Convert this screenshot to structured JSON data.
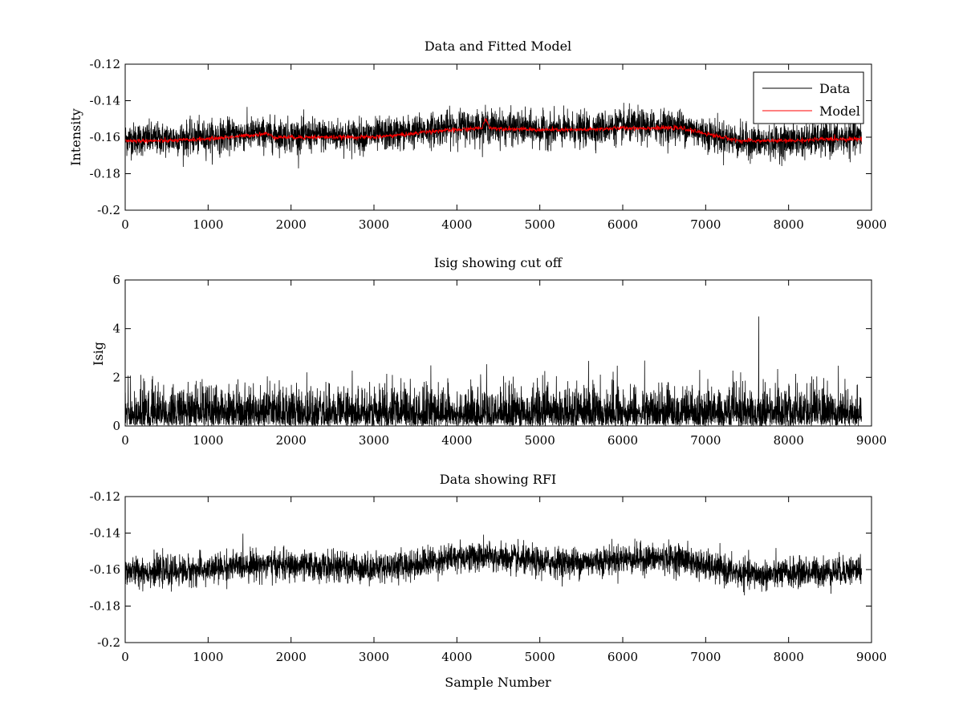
{
  "figure": {
    "colors": {
      "data": "#000000",
      "model": "#ff0000",
      "axes": "#000000",
      "background": "#ffffff"
    }
  },
  "chart_data": [
    {
      "type": "line",
      "title": "Data and Fitted Model",
      "xlabel": "",
      "ylabel": "Intensity",
      "xlim": [
        0,
        9000
      ],
      "ylim": [
        -0.2,
        -0.12
      ],
      "xticks": [
        0,
        1000,
        2000,
        3000,
        4000,
        5000,
        6000,
        7000,
        8000,
        9000
      ],
      "yticks": [
        -0.2,
        -0.18,
        -0.16,
        -0.14,
        -0.12
      ],
      "grid": false,
      "legend": {
        "position": "top-right",
        "entries": [
          "Data",
          "Model"
        ]
      },
      "series": [
        {
          "name": "Data",
          "color": "#000000",
          "noise_std": 0.0045,
          "x_range": [
            0,
            8880
          ],
          "trend": [
            [
              0,
              -0.161
            ],
            [
              500,
              -0.161
            ],
            [
              1000,
              -0.16
            ],
            [
              1500,
              -0.158
            ],
            [
              2000,
              -0.159
            ],
            [
              3000,
              -0.159
            ],
            [
              3500,
              -0.157
            ],
            [
              4000,
              -0.154
            ],
            [
              4400,
              -0.154
            ],
            [
              5000,
              -0.156
            ],
            [
              5500,
              -0.156
            ],
            [
              6000,
              -0.154
            ],
            [
              6700,
              -0.154
            ],
            [
              7000,
              -0.158
            ],
            [
              7400,
              -0.162
            ],
            [
              7700,
              -0.163
            ],
            [
              8000,
              -0.162
            ],
            [
              8500,
              -0.161
            ],
            [
              8880,
              -0.16
            ]
          ]
        },
        {
          "name": "Model",
          "color": "#ff0000",
          "x_range": [
            0,
            8880
          ],
          "values": [
            [
              0,
              -0.162
            ],
            [
              500,
              -0.162
            ],
            [
              1000,
              -0.161
            ],
            [
              1500,
              -0.159
            ],
            [
              1700,
              -0.158
            ],
            [
              1800,
              -0.16
            ],
            [
              2000,
              -0.16
            ],
            [
              3000,
              -0.16
            ],
            [
              3500,
              -0.158
            ],
            [
              3600,
              -0.157
            ],
            [
              4000,
              -0.156
            ],
            [
              4300,
              -0.155
            ],
            [
              4350,
              -0.15
            ],
            [
              4400,
              -0.155
            ],
            [
              5000,
              -0.156
            ],
            [
              5500,
              -0.156
            ],
            [
              6000,
              -0.155
            ],
            [
              6700,
              -0.155
            ],
            [
              7000,
              -0.158
            ],
            [
              7400,
              -0.162
            ],
            [
              7700,
              -0.162
            ],
            [
              8000,
              -0.162
            ],
            [
              8500,
              -0.161
            ],
            [
              8880,
              -0.161
            ]
          ]
        }
      ]
    },
    {
      "type": "line",
      "title": "Isig showing cut off",
      "xlabel": "",
      "ylabel": "Isig",
      "xlim": [
        0,
        9000
      ],
      "ylim": [
        0,
        6
      ],
      "xticks": [
        0,
        1000,
        2000,
        3000,
        4000,
        5000,
        6000,
        7000,
        8000,
        9000
      ],
      "yticks": [
        0,
        2,
        4,
        6
      ],
      "grid": false,
      "series": [
        {
          "color": "#000000",
          "distribution": "absolute-gaussian",
          "scale": 0.75,
          "x_range": [
            0,
            8880
          ],
          "peak": {
            "x": 7640,
            "y": 4.5
          }
        }
      ]
    },
    {
      "type": "line",
      "title": "Data showing RFI",
      "xlabel": "Sample Number",
      "ylabel": "",
      "xlim": [
        0,
        9000
      ],
      "ylim": [
        -0.2,
        -0.12
      ],
      "xticks": [
        0,
        1000,
        2000,
        3000,
        4000,
        5000,
        6000,
        7000,
        8000,
        9000
      ],
      "yticks": [
        -0.2,
        -0.18,
        -0.16,
        -0.14,
        -0.12
      ],
      "grid": false,
      "series": [
        {
          "color": "#000000",
          "noise_std": 0.004,
          "x_range": [
            0,
            8880
          ],
          "trend": [
            [
              0,
              -0.161
            ],
            [
              500,
              -0.161
            ],
            [
              1000,
              -0.16
            ],
            [
              1500,
              -0.157
            ],
            [
              2000,
              -0.158
            ],
            [
              3000,
              -0.159
            ],
            [
              3500,
              -0.157
            ],
            [
              4000,
              -0.153
            ],
            [
              4400,
              -0.153
            ],
            [
              5000,
              -0.156
            ],
            [
              5500,
              -0.156
            ],
            [
              6000,
              -0.154
            ],
            [
              6700,
              -0.154
            ],
            [
              7000,
              -0.158
            ],
            [
              7400,
              -0.162
            ],
            [
              7700,
              -0.163
            ],
            [
              8000,
              -0.162
            ],
            [
              8500,
              -0.161
            ],
            [
              8880,
              -0.16
            ]
          ]
        }
      ]
    }
  ]
}
